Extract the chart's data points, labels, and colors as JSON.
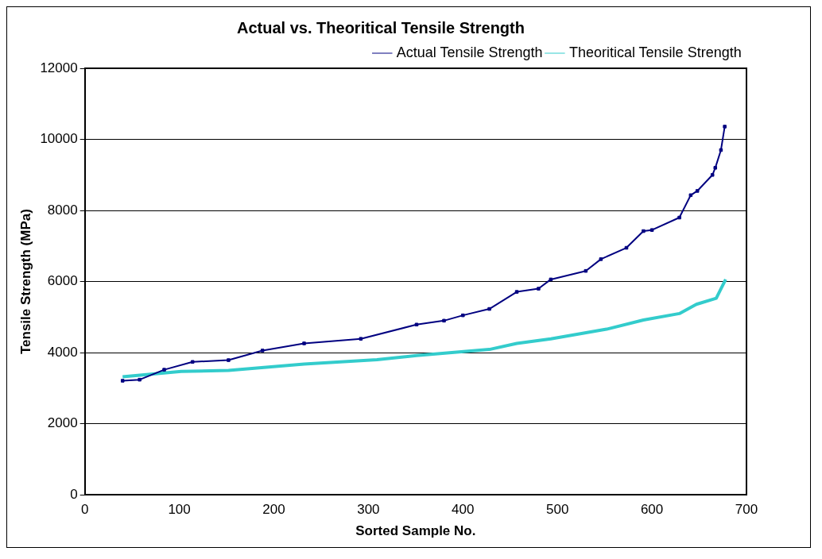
{
  "chart_data": {
    "type": "line",
    "title": "Actual vs. Theoritical Tensile Strength",
    "xlabel": "Sorted Sample No.",
    "ylabel": "Tensile Strength (MPa)",
    "xlim": [
      0,
      700
    ],
    "xticks": [
      0,
      100,
      200,
      300,
      400,
      500,
      600,
      700
    ],
    "ylim": [
      0,
      12000
    ],
    "yticks": [
      0,
      2000,
      4000,
      6000,
      8000,
      10000,
      12000
    ],
    "grid": "y",
    "legend": "top right",
    "series": [
      {
        "name": "Actual Tensile Strength",
        "color": "#000080",
        "marker": "square",
        "x": [
          40,
          58,
          84,
          114,
          152,
          188,
          232,
          292,
          351,
          380,
          400,
          428,
          457,
          480,
          493,
          530,
          546,
          573,
          591,
          600,
          629,
          641,
          648,
          664,
          667,
          673,
          677
        ],
        "values": [
          3210,
          3240,
          3520,
          3740,
          3790,
          4060,
          4260,
          4390,
          4790,
          4900,
          5050,
          5230,
          5710,
          5800,
          6060,
          6300,
          6630,
          6950,
          7420,
          7450,
          7800,
          8430,
          8550,
          9000,
          9200,
          9700,
          10360
        ]
      },
      {
        "name": "Theoritical Tensile Strength",
        "color": "#33cccc",
        "marker": "none",
        "x": [
          40,
          102,
          152,
          232,
          309,
          351,
          428,
          457,
          493,
          552,
          591,
          629,
          647,
          668,
          678
        ],
        "values": [
          3320,
          3470,
          3500,
          3680,
          3800,
          3920,
          4090,
          4260,
          4390,
          4660,
          4920,
          5100,
          5360,
          5530,
          6060
        ]
      }
    ]
  }
}
